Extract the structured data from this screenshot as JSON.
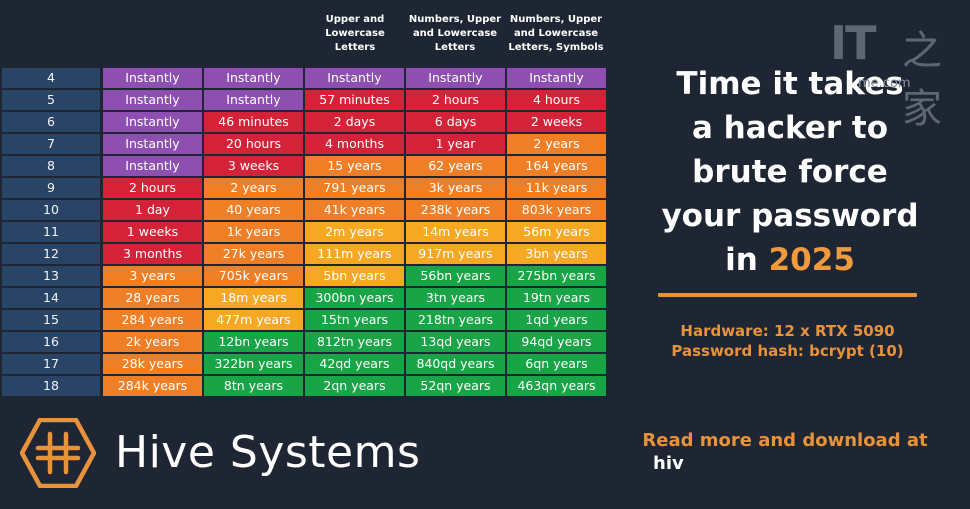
{
  "colors": {
    "background": "#1e2633",
    "number_column": "#2a4466",
    "accent": "#e8923a",
    "purple": "#8d4fb0",
    "red": "#d42238",
    "orange": "#ee7f26",
    "yellow": "#f6a823",
    "green": "#19a547"
  },
  "chart_data": {
    "type": "table",
    "title": [
      "Time it takes",
      "a hacker to",
      "brute force",
      "your password",
      "in",
      "2025"
    ],
    "columns": [
      "",
      "",
      "",
      "Upper and\nLowercase\nLetters",
      "Numbers, Upper\nand Lowercase\nLetters",
      "Numbers, Upper\nand Lowercase\nLetters, Symbols"
    ],
    "rows": [
      {
        "length": "4",
        "cells": [
          "Instantly",
          "Instantly",
          "Instantly",
          "Instantly",
          "Instantly"
        ],
        "levels": [
          "purple",
          "purple",
          "purple",
          "purple",
          "purple"
        ]
      },
      {
        "length": "5",
        "cells": [
          "Instantly",
          "Instantly",
          "57 minutes",
          "2 hours",
          "4 hours"
        ],
        "levels": [
          "purple",
          "purple",
          "red",
          "red",
          "red"
        ]
      },
      {
        "length": "6",
        "cells": [
          "Instantly",
          "46 minutes",
          "2 days",
          "6 days",
          "2 weeks"
        ],
        "levels": [
          "purple",
          "red",
          "red",
          "red",
          "red"
        ]
      },
      {
        "length": "7",
        "cells": [
          "Instantly",
          "20 hours",
          "4 months",
          "1 year",
          "2 years"
        ],
        "levels": [
          "purple",
          "red",
          "red",
          "red",
          "orange"
        ]
      },
      {
        "length": "8",
        "cells": [
          "Instantly",
          "3 weeks",
          "15 years",
          "62 years",
          "164 years"
        ],
        "levels": [
          "purple",
          "red",
          "orange",
          "orange",
          "orange"
        ]
      },
      {
        "length": "9",
        "cells": [
          "2 hours",
          "2 years",
          "791 years",
          "3k years",
          "11k years"
        ],
        "levels": [
          "red",
          "orange",
          "orange",
          "orange",
          "orange"
        ]
      },
      {
        "length": "10",
        "cells": [
          "1 day",
          "40 years",
          "41k years",
          "238k years",
          "803k years"
        ],
        "levels": [
          "red",
          "orange",
          "orange",
          "orange",
          "orange"
        ]
      },
      {
        "length": "11",
        "cells": [
          "1 weeks",
          "1k years",
          "2m years",
          "14m years",
          "56m years"
        ],
        "levels": [
          "red",
          "orange",
          "yellow",
          "yellow",
          "yellow"
        ]
      },
      {
        "length": "12",
        "cells": [
          "3 months",
          "27k years",
          "111m years",
          "917m years",
          "3bn years"
        ],
        "levels": [
          "red",
          "orange",
          "yellow",
          "yellow",
          "yellow"
        ]
      },
      {
        "length": "13",
        "cells": [
          "3 years",
          "705k years",
          "5bn years",
          "56bn years",
          "275bn years"
        ],
        "levels": [
          "orange",
          "orange",
          "yellow",
          "green",
          "green"
        ]
      },
      {
        "length": "14",
        "cells": [
          "28 years",
          "18m years",
          "300bn years",
          "3tn years",
          "19tn years"
        ],
        "levels": [
          "orange",
          "yellow",
          "green",
          "green",
          "green"
        ]
      },
      {
        "length": "15",
        "cells": [
          "284 years",
          "477m years",
          "15tn years",
          "218tn years",
          "1qd years"
        ],
        "levels": [
          "orange",
          "yellow",
          "green",
          "green",
          "green"
        ]
      },
      {
        "length": "16",
        "cells": [
          "2k years",
          "12bn years",
          "812tn years",
          "13qd years",
          "94qd years"
        ],
        "levels": [
          "orange",
          "green",
          "green",
          "green",
          "green"
        ]
      },
      {
        "length": "17",
        "cells": [
          "28k years",
          "322bn years",
          "42qd years",
          "840qd years",
          "6qn years"
        ],
        "levels": [
          "orange",
          "green",
          "green",
          "green",
          "green"
        ]
      },
      {
        "length": "18",
        "cells": [
          "284k years",
          "8tn years",
          "2qn years",
          "52qn years",
          "463qn years"
        ],
        "levels": [
          "orange",
          "green",
          "green",
          "green",
          "green"
        ]
      }
    ],
    "annotations": [
      "Hardware: 12 x RTX 5090",
      "Password hash: bcrypt (10)"
    ]
  },
  "footer": {
    "brand": "Hive Systems",
    "read_more": "Read more and download at",
    "read_more_url": "hiv"
  },
  "watermark": {
    "it": "IT",
    "cjk": "之家",
    "site": "me.com"
  },
  "icons": {
    "logo": "hive-systems-logo-icon"
  }
}
